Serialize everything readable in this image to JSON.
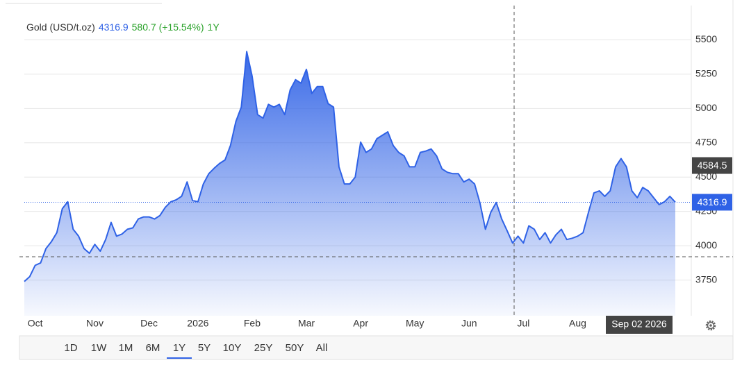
{
  "chart_data": {
    "type": "area",
    "title": "Gold (USD/t.oz)",
    "price": 4316.9,
    "change": "580.7 (+15.54%)",
    "period": "1Y",
    "crosshair": {
      "value": 4584.5,
      "date": "Sep 02 2026"
    },
    "color": "#2f62e6",
    "grid": true,
    "categories": [
      null,
      null,
      "Oct",
      null,
      null,
      null,
      null,
      null,
      null,
      null,
      null,
      null,
      null,
      "Nov",
      null,
      null,
      null,
      null,
      null,
      null,
      null,
      null,
      null,
      "Dec",
      null,
      null,
      null,
      null,
      null,
      null,
      null,
      null,
      "2026",
      null,
      null,
      null,
      null,
      null,
      null,
      null,
      null,
      null,
      "Feb",
      null,
      null,
      null,
      null,
      null,
      null,
      null,
      null,
      null,
      "Mar",
      null,
      null,
      null,
      null,
      null,
      null,
      null,
      null,
      null,
      "Apr",
      null,
      null,
      null,
      null,
      null,
      null,
      null,
      null,
      null,
      "May",
      null,
      null,
      null,
      null,
      null,
      null,
      null,
      null,
      null,
      "Jun",
      null,
      null,
      null,
      null,
      null,
      null,
      null,
      null,
      null,
      "Jul",
      null,
      null,
      null,
      null,
      null,
      null,
      null,
      null,
      null,
      "Aug",
      null,
      null,
      null,
      null,
      null,
      null,
      null,
      null,
      null,
      null,
      null,
      null,
      null,
      null,
      null,
      null,
      null,
      null
    ],
    "values": [
      3740,
      3775,
      3857,
      3875,
      3980,
      4030,
      4095,
      4270,
      4320,
      4120,
      4070,
      3980,
      3945,
      4010,
      3960,
      4045,
      4170,
      4070,
      4085,
      4120,
      4130,
      4195,
      4210,
      4210,
      4195,
      4220,
      4280,
      4320,
      4335,
      4360,
      4465,
      4330,
      4320,
      4450,
      4525,
      4565,
      4600,
      4625,
      4730,
      4905,
      5010,
      5415,
      5235,
      4955,
      4930,
      5030,
      5010,
      5030,
      4955,
      5135,
      5210,
      5185,
      5285,
      5110,
      5160,
      5160,
      5035,
      5010,
      4575,
      4450,
      4450,
      4500,
      4755,
      4680,
      4705,
      4780,
      4805,
      4830,
      4730,
      4680,
      4655,
      4575,
      4575,
      4680,
      4690,
      4705,
      4655,
      4560,
      4535,
      4525,
      4525,
      4465,
      4485,
      4450,
      4310,
      4120,
      4245,
      4315,
      4195,
      4110,
      4020,
      4070,
      4020,
      4145,
      4120,
      4045,
      4095,
      4020,
      4080,
      4120,
      4045,
      4055,
      4070,
      4095,
      4245,
      4385,
      4400,
      4360,
      4400,
      4575,
      4635,
      4575,
      4400,
      4350,
      4425,
      4400,
      4350,
      4300,
      4320,
      4360,
      4316.9
    ],
    "ylim": [
      3490,
      5750
    ],
    "yticks": [
      3750,
      4000,
      4250,
      4500,
      4750,
      5000,
      5250,
      5500
    ],
    "range_buttons": [
      "1D",
      "1W",
      "1M",
      "6M",
      "1Y",
      "5Y",
      "10Y",
      "25Y",
      "50Y",
      "All"
    ],
    "selected_range": "1Y"
  }
}
